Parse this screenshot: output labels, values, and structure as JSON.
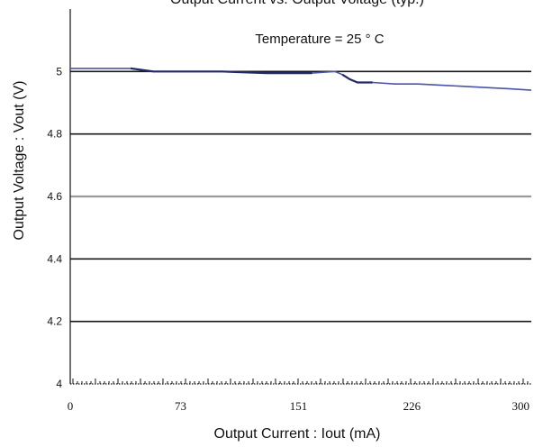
{
  "chart_data": {
    "type": "line",
    "title": "Output Current vs. Output Voltage (typ.)",
    "annotation": "Temperature = 25 ° C",
    "xlabel": "Output Current : Iout (mA)",
    "ylabel": "Output Voltage : Vout (V)",
    "xlim": [
      0,
      305
    ],
    "ylim": [
      4,
      5.2
    ],
    "x_ticks": [
      0,
      73,
      151,
      226,
      300
    ],
    "x_tick_labels": [
      "0",
      "73",
      "151",
      "226",
      "300"
    ],
    "y_ticks": [
      4,
      4.2,
      4.4,
      4.6,
      4.8,
      5
    ],
    "y_tick_labels": [
      "4",
      "4.2",
      "4.4",
      "4.6",
      "4.8",
      "5"
    ],
    "grid": "horizontal",
    "series": [
      {
        "color": "#4a55a8",
        "x": [
          0,
          20,
          40,
          55,
          70,
          100,
          130,
          160,
          175,
          180,
          185,
          190,
          200,
          215,
          230,
          250,
          270,
          290,
          305
        ],
        "y": [
          5.01,
          5.01,
          5.01,
          5.0,
          5.0,
          5.0,
          4.995,
          4.995,
          5.0,
          4.99,
          4.975,
          4.965,
          4.965,
          4.96,
          4.96,
          4.955,
          4.95,
          4.945,
          4.94
        ]
      }
    ],
    "colors": {
      "grid_dark": "#1a1a1a",
      "grid_light": "#9a9a9a",
      "axis": "#111111",
      "background": "#ffffff"
    }
  }
}
